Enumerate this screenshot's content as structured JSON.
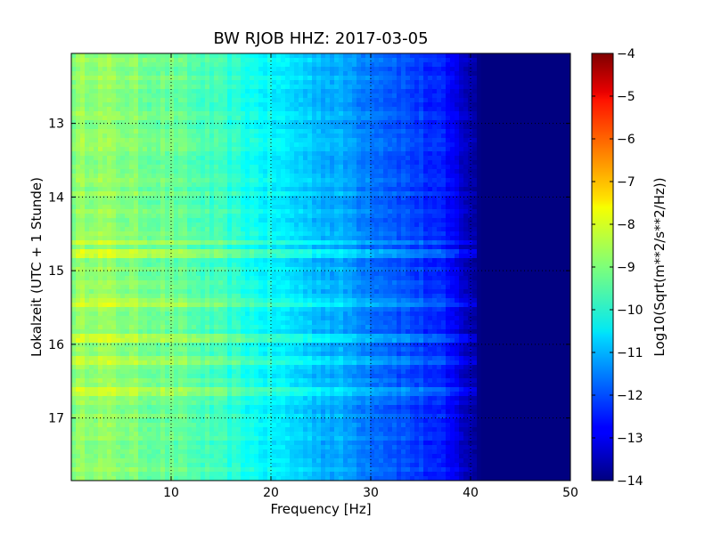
{
  "chart_data": {
    "type": "heatmap",
    "title": "BW RJOB HHZ: 2017-03-05",
    "xlabel": "Frequency [Hz]",
    "ylabel": "Lokalzeit (UTC + 1 Stunde)",
    "colorbar_label": "Log10(Sqrt(m**2/s**2/Hz))",
    "xlim": [
      0,
      50
    ],
    "ylim": [
      12.05,
      17.85
    ],
    "y_inverted": true,
    "x_ticks": [
      10,
      20,
      30,
      40,
      50
    ],
    "y_ticks": [
      13,
      14,
      15,
      16,
      17
    ],
    "color_range": [
      -14,
      -4
    ],
    "colorbar_ticks": [
      -4,
      -5,
      -6,
      -7,
      -8,
      -9,
      -10,
      -11,
      -12,
      -13,
      -14
    ],
    "colormap": "jet",
    "grid": true,
    "spectrum_profile": {
      "frequency_hz": [
        0,
        2,
        5,
        8,
        10,
        15,
        20,
        25,
        28,
        30,
        33,
        35,
        37,
        38,
        39,
        40,
        40.5,
        41,
        42,
        50
      ],
      "log_psd": [
        -8.9,
        -8.7,
        -8.9,
        -9.1,
        -9.2,
        -9.7,
        -10.3,
        -10.9,
        -11.2,
        -11.5,
        -11.9,
        -12.2,
        -12.5,
        -12.8,
        -13.1,
        -13.5,
        -13.8,
        -14.0,
        -14.0,
        -14.0
      ]
    },
    "bright_bands_hour": [
      14.62,
      14.75,
      15.45,
      15.93,
      16.2,
      16.63
    ]
  }
}
